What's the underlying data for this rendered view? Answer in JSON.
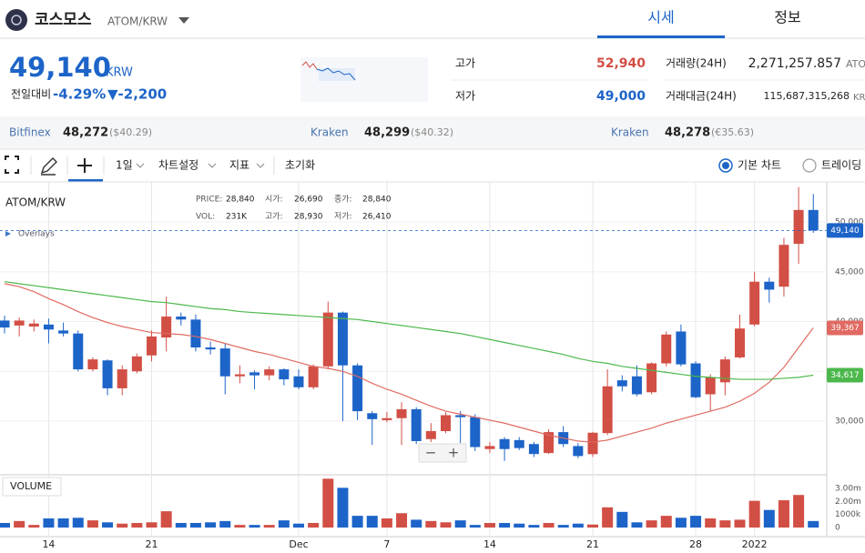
{
  "header": {
    "title": "코스모스",
    "pair": "ATOM/KRW",
    "tabs": [
      "시세",
      "정보"
    ]
  },
  "price": {
    "value": "49,140",
    "unit": "KRW",
    "change_label": "전일대비",
    "change_pct": "-4.29%",
    "change_abs": "▼-2,200"
  },
  "stats": {
    "high_label": "고가",
    "high": "52,940",
    "low_label": "저가",
    "low": "49,000",
    "volume_label": "거래량(24H)",
    "volume": "2,271,257.857",
    "volume_unit": "ATO",
    "amount_label": "거래대금(24H)",
    "amount": "115,687,315,268",
    "amount_unit": "KR"
  },
  "exchanges": [
    {
      "name": "Bitfinex",
      "price": "48,272",
      "quote": "($40.29)"
    },
    {
      "name": "Kraken",
      "price": "48,299",
      "quote": "($40.32)"
    },
    {
      "name": "Kraken",
      "price": "48,278",
      "quote": "(€35.63)"
    }
  ],
  "toolbar": {
    "interval": "1일",
    "settings": "차트설정",
    "indicators": "지표",
    "reset": "초기화",
    "basic": "기본 차트",
    "trading": "트레이딩"
  },
  "chart_data": {
    "type": "candlestick",
    "title": "ATOM/KRW",
    "overlays_label": "Overlays",
    "volume_label": "VOLUME",
    "info": [
      {
        "label": "PRICE:",
        "value": "28,840"
      },
      {
        "label": "시가:",
        "value": "26,690"
      },
      {
        "label": "종가:",
        "value": "28,840"
      },
      {
        "label": "VOL:",
        "value": "231K"
      },
      {
        "label": "고가:",
        "value": "28,930"
      },
      {
        "label": "저가:",
        "value": "26,410"
      }
    ],
    "categories": [
      null,
      null,
      null,
      "14",
      null,
      null,
      null,
      null,
      null,
      null,
      "21",
      null,
      null,
      null,
      null,
      null,
      null,
      null,
      null,
      null,
      "Dec",
      null,
      null,
      null,
      null,
      null,
      "7",
      null,
      null,
      null,
      null,
      null,
      null,
      "14",
      null,
      null,
      null,
      null,
      null,
      null,
      "21",
      null,
      null,
      null,
      null,
      null,
      null,
      "28",
      null,
      null,
      null,
      "2022",
      null,
      null,
      null,
      null
    ],
    "open": [
      40100,
      39600,
      39500,
      39700,
      39100,
      38800,
      35200,
      36100,
      33300,
      35000,
      36600,
      38400,
      40500,
      40200,
      37400,
      37300,
      34500,
      34900,
      34600,
      35200,
      34500,
      33400,
      35500,
      40900,
      35600,
      30800,
      30100,
      30300,
      31200,
      28200,
      29000,
      30600,
      30400,
      27200,
      28200,
      28100,
      27700,
      26800,
      28900,
      27500,
      26690,
      28800,
      34100,
      34500,
      32900,
      35800,
      39000,
      35800,
      32700,
      33900,
      36400,
      39700,
      44000,
      43500,
      47800,
      51200
    ],
    "high": [
      40600,
      40400,
      40200,
      40300,
      39900,
      39100,
      36400,
      36200,
      35600,
      36800,
      39100,
      42500,
      40900,
      40700,
      38000,
      37800,
      35600,
      35100,
      35500,
      35300,
      35200,
      35700,
      42000,
      41000,
      35800,
      31000,
      30900,
      31900,
      31400,
      29800,
      30900,
      31000,
      30700,
      27900,
      28400,
      28400,
      27900,
      29200,
      29500,
      27800,
      28930,
      35200,
      34600,
      35600,
      35900,
      39000,
      39700,
      36000,
      34700,
      36500,
      40700,
      45000,
      44400,
      48400,
      53500,
      52800
    ],
    "low": [
      38800,
      38500,
      39000,
      37800,
      38500,
      35000,
      35000,
      32600,
      32600,
      34800,
      36000,
      37000,
      39600,
      37000,
      36700,
      32700,
      33800,
      33200,
      34100,
      33600,
      33200,
      33200,
      35200,
      30000,
      30100,
      27600,
      29900,
      27600,
      27700,
      27900,
      28800,
      27800,
      27000,
      26800,
      26000,
      27100,
      26400,
      26700,
      27400,
      26300,
      26410,
      28600,
      33000,
      32500,
      32700,
      35500,
      35500,
      32300,
      31000,
      32600,
      36300,
      39500,
      41900,
      42500,
      45800,
      48900
    ],
    "close": [
      39400,
      40100,
      39800,
      39200,
      38800,
      35200,
      36200,
      33300,
      35200,
      36500,
      38500,
      40500,
      40200,
      37400,
      37200,
      34500,
      34700,
      34600,
      35200,
      34200,
      33400,
      35500,
      40900,
      35600,
      31000,
      30200,
      30300,
      31200,
      28000,
      29000,
      30600,
      30400,
      27400,
      27500,
      27200,
      27300,
      26700,
      28900,
      27700,
      26500,
      28840,
      33500,
      33500,
      32700,
      35800,
      38700,
      35700,
      32400,
      34400,
      36200,
      39300,
      44000,
      43200,
      47700,
      51200,
      49140
    ],
    "volume": [
      350000,
      500000,
      200000,
      700000,
      700000,
      750000,
      550000,
      400000,
      300000,
      350000,
      400000,
      1250000,
      350000,
      350000,
      400000,
      500000,
      200000,
      200000,
      200000,
      550000,
      300000,
      350000,
      3750000,
      3050000,
      900000,
      900000,
      700000,
      1100000,
      600000,
      500000,
      400000,
      550000,
      200000,
      350000,
      350000,
      300000,
      200000,
      350000,
      200000,
      300000,
      231000,
      1550000,
      1200000,
      400000,
      550000,
      900000,
      750000,
      900000,
      700000,
      550000,
      600000,
      2050000,
      1350000,
      2100000,
      2500000,
      500000
    ],
    "up_color": "#d24f45",
    "down_color": "#1d64c9",
    "last_label": "49,140",
    "series": [
      {
        "color": "#e06a62",
        "last_label": "39,367",
        "values": [
          43800,
          43500,
          43000,
          42300,
          41700,
          41000,
          40400,
          39900,
          39500,
          39200,
          38900,
          38800,
          38700,
          38500,
          38200,
          37800,
          37400,
          37000,
          36700,
          36300,
          35900,
          35500,
          35300,
          35000,
          34500,
          33800,
          33200,
          32700,
          32100,
          31500,
          31000,
          30700,
          30400,
          30100,
          29800,
          29400,
          29000,
          28600,
          28300,
          28000,
          27900,
          28100,
          28500,
          28900,
          29300,
          29800,
          30200,
          30600,
          31000,
          31400,
          32000,
          32800,
          33900,
          35400,
          37400,
          39367
        ]
      },
      {
        "color": "#4cb84c",
        "last_label": "34,617",
        "values": [
          44000,
          43800,
          43600,
          43400,
          43200,
          43000,
          42800,
          42600,
          42400,
          42200,
          42000,
          41900,
          41700,
          41500,
          41300,
          41200,
          41000,
          40900,
          40800,
          40700,
          40600,
          40500,
          40400,
          40300,
          40200,
          40000,
          39800,
          39600,
          39400,
          39200,
          39000,
          38800,
          38500,
          38200,
          37900,
          37600,
          37300,
          37000,
          36700,
          36300,
          36000,
          35800,
          35500,
          35300,
          35100,
          34900,
          34700,
          34500,
          34400,
          34300,
          34200,
          34200,
          34200,
          34300,
          34400,
          34617
        ]
      }
    ],
    "ylim": [
      24800,
      53560
    ],
    "yticks": [
      {
        "value": 30000,
        "label": "30,000"
      },
      {
        "value": 35000,
        "label": "35,000"
      },
      {
        "value": 40000,
        "label": "40,000"
      },
      {
        "value": 45000,
        "label": "45,000"
      },
      {
        "value": 50000,
        "label": "50,000"
      }
    ],
    "volume_ylim": [
      0,
      4050000
    ],
    "volume_yticks": [
      0,
      {
        "value": 1000000,
        "label": "1000k"
      },
      {
        "value": 2000000,
        "label": "2.00m"
      },
      {
        "value": 3000000,
        "label": "3.00m"
      }
    ],
    "grid": true
  }
}
